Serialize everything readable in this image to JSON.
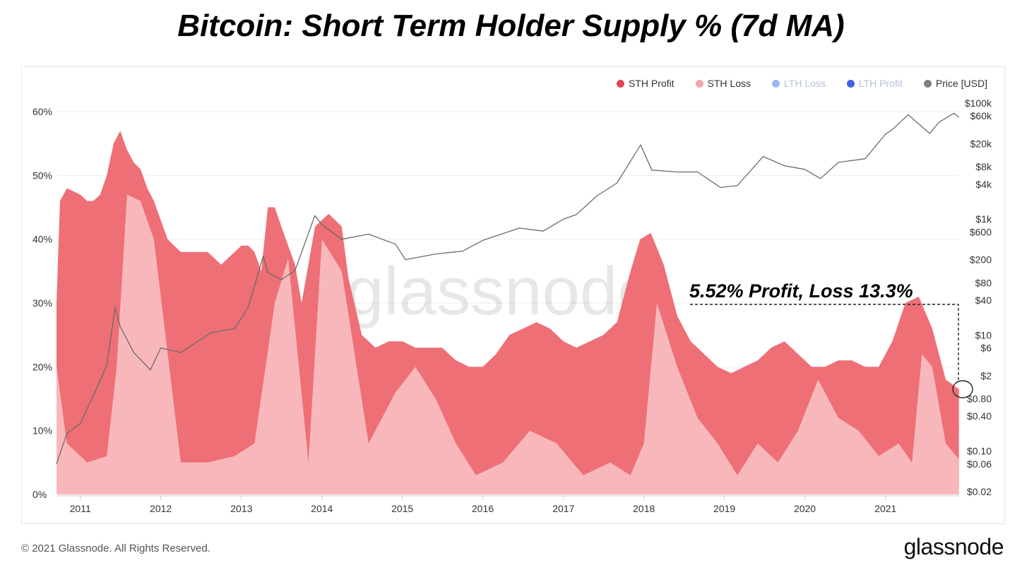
{
  "title": "Bitcoin: Short Term Holder Supply % (7d MA)",
  "legend": [
    {
      "label": "STH Profit",
      "color": "#e64553",
      "active": true
    },
    {
      "label": "STH Loss",
      "color": "#f5a3a8",
      "active": true
    },
    {
      "label": "LTH Loss",
      "color": "#9db7f2",
      "active": false
    },
    {
      "label": "LTH Profit",
      "color": "#3d63e0",
      "active": false
    },
    {
      "label": "Price [USD]",
      "color": "#808080",
      "active": true
    }
  ],
  "annotation": "5.52% Profit, Loss 13.3%",
  "watermark": "glassnode",
  "footer": {
    "copyright": "© 2021 Glassnode. All Rights Reserved.",
    "logo": "glassnode"
  },
  "chart_data": {
    "type": "area",
    "title": "Bitcoin: Short Term Holder Supply % (7d MA)",
    "x_ticks": [
      "2011",
      "2012",
      "2013",
      "2014",
      "2015",
      "2016",
      "2017",
      "2018",
      "2019",
      "2020",
      "2021"
    ],
    "y_left": {
      "ticks": [
        "0%",
        "10%",
        "20%",
        "30%",
        "40%",
        "50%",
        "60%"
      ],
      "range": [
        0,
        62
      ]
    },
    "y_right": {
      "scale": "log",
      "ticks": [
        "$0.02",
        "$0.06",
        "$0.10",
        "$0.40",
        "$0.80",
        "$2",
        "$6",
        "$10",
        "$40",
        "$80",
        "$200",
        "$600",
        "$1k",
        "$4k",
        "$8k",
        "$20k",
        "$60k",
        "$100k"
      ],
      "range": [
        0.02,
        100000
      ]
    },
    "x_range": [
      "2010-09-15",
      "2021-12-01"
    ],
    "series": [
      {
        "name": "STH Profit",
        "note": "stacked top (total STH supply %)",
        "x": [
          "2010-09-15",
          "2010-10-01",
          "2010-11-01",
          "2011-01-01",
          "2011-02-01",
          "2011-03-01",
          "2011-04-01",
          "2011-05-01",
          "2011-06-01",
          "2011-07-01",
          "2011-08-01",
          "2011-09-01",
          "2011-10-01",
          "2011-11-01",
          "2011-12-01",
          "2012-02-01",
          "2012-04-01",
          "2012-06-01",
          "2012-08-01",
          "2012-10-01",
          "2012-12-01",
          "2013-01-01",
          "2013-02-01",
          "2013-03-01",
          "2013-04-01",
          "2013-05-01",
          "2013-06-01",
          "2013-07-01",
          "2013-09-01",
          "2013-10-01",
          "2013-12-01",
          "2014-02-01",
          "2014-04-01",
          "2014-05-01",
          "2014-07-01",
          "2014-09-01",
          "2014-11-01",
          "2015-01-01",
          "2015-03-01",
          "2015-05-01",
          "2015-07-01",
          "2015-09-01",
          "2015-11-01",
          "2016-01-01",
          "2016-03-01",
          "2016-05-01",
          "2016-07-01",
          "2016-09-01",
          "2016-11-01",
          "2017-01-01",
          "2017-03-01",
          "2017-05-01",
          "2017-07-01",
          "2017-09-01",
          "2017-11-01",
          "2017-12-15",
          "2018-02-01",
          "2018-04-01",
          "2018-06-01",
          "2018-08-01",
          "2018-10-01",
          "2018-12-01",
          "2019-02-01",
          "2019-04-01",
          "2019-06-01",
          "2019-08-01",
          "2019-10-01",
          "2019-12-01",
          "2020-02-01",
          "2020-04-01",
          "2020-06-01",
          "2020-08-01",
          "2020-10-01",
          "2020-12-01",
          "2021-02-01",
          "2021-04-01",
          "2021-06-01",
          "2021-08-01",
          "2021-10-01",
          "2021-11-30"
        ],
        "values": [
          30,
          46,
          48,
          47,
          46,
          46,
          47,
          50,
          55,
          57,
          54,
          52,
          51,
          48,
          46,
          40,
          38,
          38,
          38,
          36,
          38,
          39,
          39,
          38,
          35,
          45,
          45,
          42,
          36,
          30,
          42,
          44,
          42,
          34,
          25,
          23,
          24,
          24,
          23,
          23,
          23,
          21,
          20,
          20,
          22,
          25,
          26,
          27,
          26,
          24,
          23,
          24,
          25,
          27,
          35,
          40,
          41,
          36,
          28,
          24,
          22,
          20,
          19,
          20,
          21,
          23,
          24,
          22,
          20,
          20,
          21,
          21,
          20,
          20,
          24,
          30,
          31,
          26,
          18,
          16.5
        ],
        "color": "#ee6f76"
      },
      {
        "name": "STH Loss",
        "note": "lower band",
        "x": [
          "2010-09-15",
          "2010-11-01",
          "2011-02-01",
          "2011-05-01",
          "2011-06-15",
          "2011-08-01",
          "2011-10-01",
          "2011-12-01",
          "2012-04-01",
          "2012-08-01",
          "2012-12-01",
          "2013-03-01",
          "2013-06-01",
          "2013-08-01",
          "2013-11-01",
          "2014-01-01",
          "2014-04-01",
          "2014-08-01",
          "2014-12-01",
          "2015-03-01",
          "2015-06-01",
          "2015-09-01",
          "2015-12-01",
          "2016-04-01",
          "2016-08-01",
          "2016-12-01",
          "2017-04-01",
          "2017-08-01",
          "2017-11-01",
          "2018-01-01",
          "2018-03-01",
          "2018-06-01",
          "2018-09-01",
          "2018-12-01",
          "2019-03-01",
          "2019-06-01",
          "2019-09-01",
          "2019-12-01",
          "2020-03-01",
          "2020-06-01",
          "2020-09-01",
          "2020-12-01",
          "2021-03-01",
          "2021-05-01",
          "2021-06-15",
          "2021-08-01",
          "2021-10-01",
          "2021-11-30"
        ],
        "values": [
          20,
          8,
          5,
          6,
          20,
          47,
          46,
          40,
          5,
          5,
          6,
          8,
          30,
          37,
          5,
          40,
          35,
          8,
          16,
          20,
          15,
          8,
          3,
          5,
          10,
          8,
          3,
          5,
          3,
          8,
          30,
          20,
          12,
          8,
          3,
          8,
          5,
          10,
          18,
          12,
          10,
          6,
          8,
          5,
          22,
          20,
          8,
          5.5
        ],
        "color": "#f8b8bb"
      },
      {
        "name": "Price [USD]",
        "axis": "right-log",
        "x": [
          "2010-09-15",
          "2010-11-01",
          "2011-01-01",
          "2011-03-01",
          "2011-05-01",
          "2011-06-08",
          "2011-07-01",
          "2011-09-01",
          "2011-11-15",
          "2012-01-01",
          "2012-04-01",
          "2012-08-15",
          "2012-12-01",
          "2013-02-01",
          "2013-04-10",
          "2013-05-01",
          "2013-07-01",
          "2013-09-01",
          "2013-11-30",
          "2014-01-01",
          "2014-04-01",
          "2014-08-01",
          "2014-12-01",
          "2015-01-15",
          "2015-06-01",
          "2015-10-01",
          "2016-01-01",
          "2016-06-15",
          "2016-10-01",
          "2017-01-01",
          "2017-03-01",
          "2017-06-01",
          "2017-09-01",
          "2017-12-17",
          "2018-02-06",
          "2018-06-01",
          "2018-09-01",
          "2018-12-15",
          "2019-03-01",
          "2019-06-26",
          "2019-10-01",
          "2020-01-01",
          "2020-03-12",
          "2020-06-01",
          "2020-10-01",
          "2020-12-31",
          "2021-02-01",
          "2021-04-14",
          "2021-07-20",
          "2021-09-01",
          "2021-11-08",
          "2021-11-30"
        ],
        "values": [
          0.06,
          0.2,
          0.3,
          0.9,
          3,
          30,
          14,
          5,
          2.5,
          6,
          5,
          11,
          13,
          30,
          230,
          120,
          90,
          130,
          1150,
          800,
          450,
          550,
          370,
          200,
          250,
          280,
          430,
          700,
          620,
          1000,
          1200,
          2500,
          4200,
          19000,
          7000,
          6500,
          6500,
          3500,
          3800,
          12000,
          8300,
          7200,
          5000,
          9500,
          11000,
          29000,
          35000,
          63000,
          30000,
          47000,
          67000,
          57000
        ]
      }
    ]
  }
}
